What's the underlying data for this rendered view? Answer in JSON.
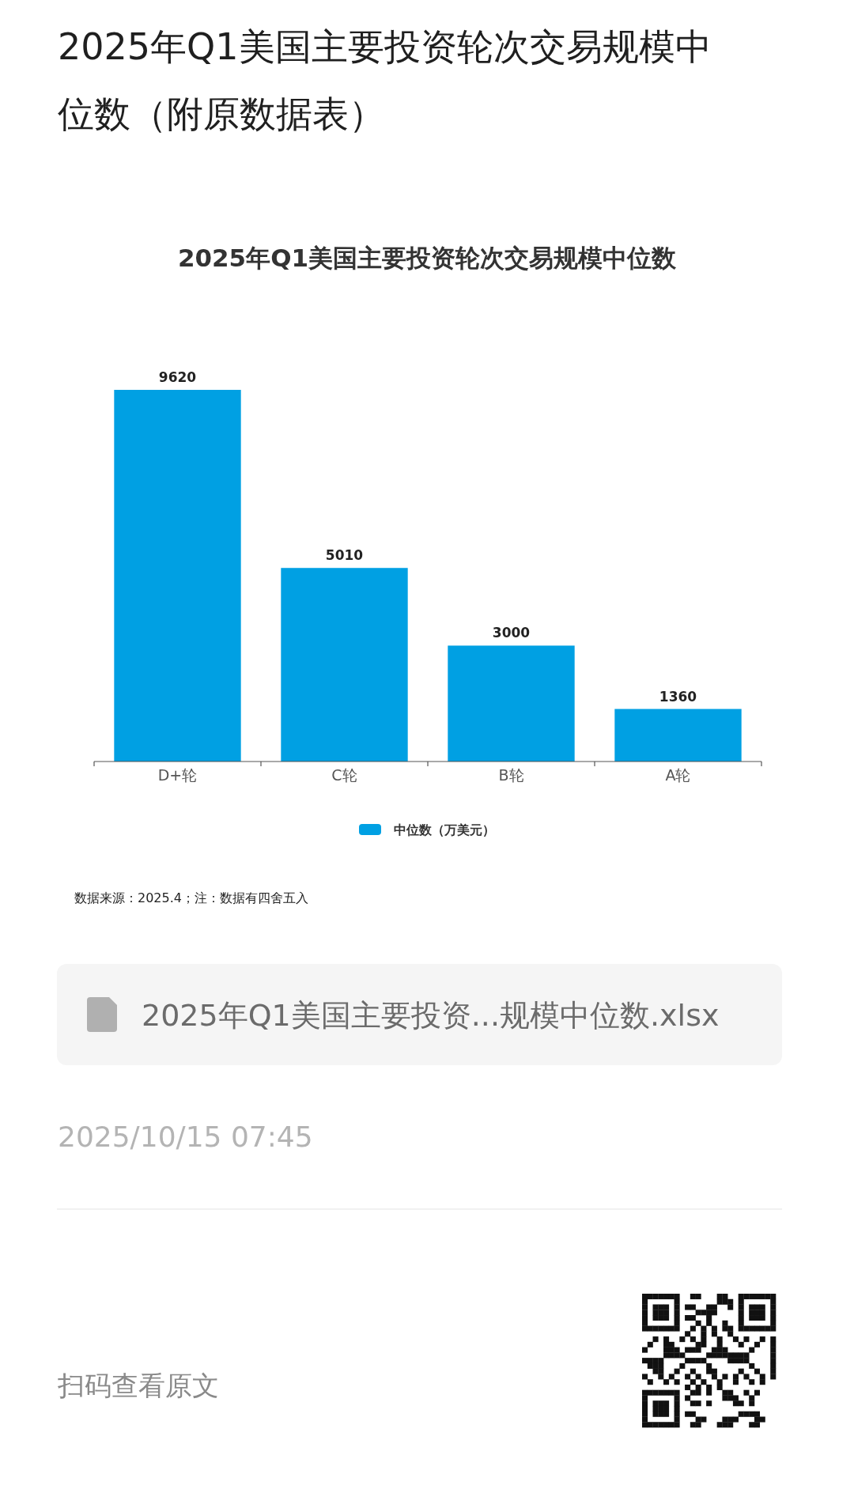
{
  "chart_data": {
    "type": "bar",
    "title": "2025年Q1美国主要投资轮次交易规模中位数",
    "categories": [
      "D+轮",
      "C轮",
      "B轮",
      "A轮"
    ],
    "series": [
      {
        "name": "中位数（万美元）",
        "color": "#00a0e3",
        "values": [
          9620,
          5010,
          3000,
          1360
        ]
      }
    ],
    "data_labels": true,
    "legend": "bottom",
    "annotations": [
      "2025年Q1美国主要投资轮次交易规模中位数（附原数据表）",
      "数据来源：2025.4；注：数据有四舍五入",
      "2025年Q1美国主要投资...规模中位数.xlsx",
      "2025/10/15 07:45",
      "扫码查看原文"
    ]
  }
}
